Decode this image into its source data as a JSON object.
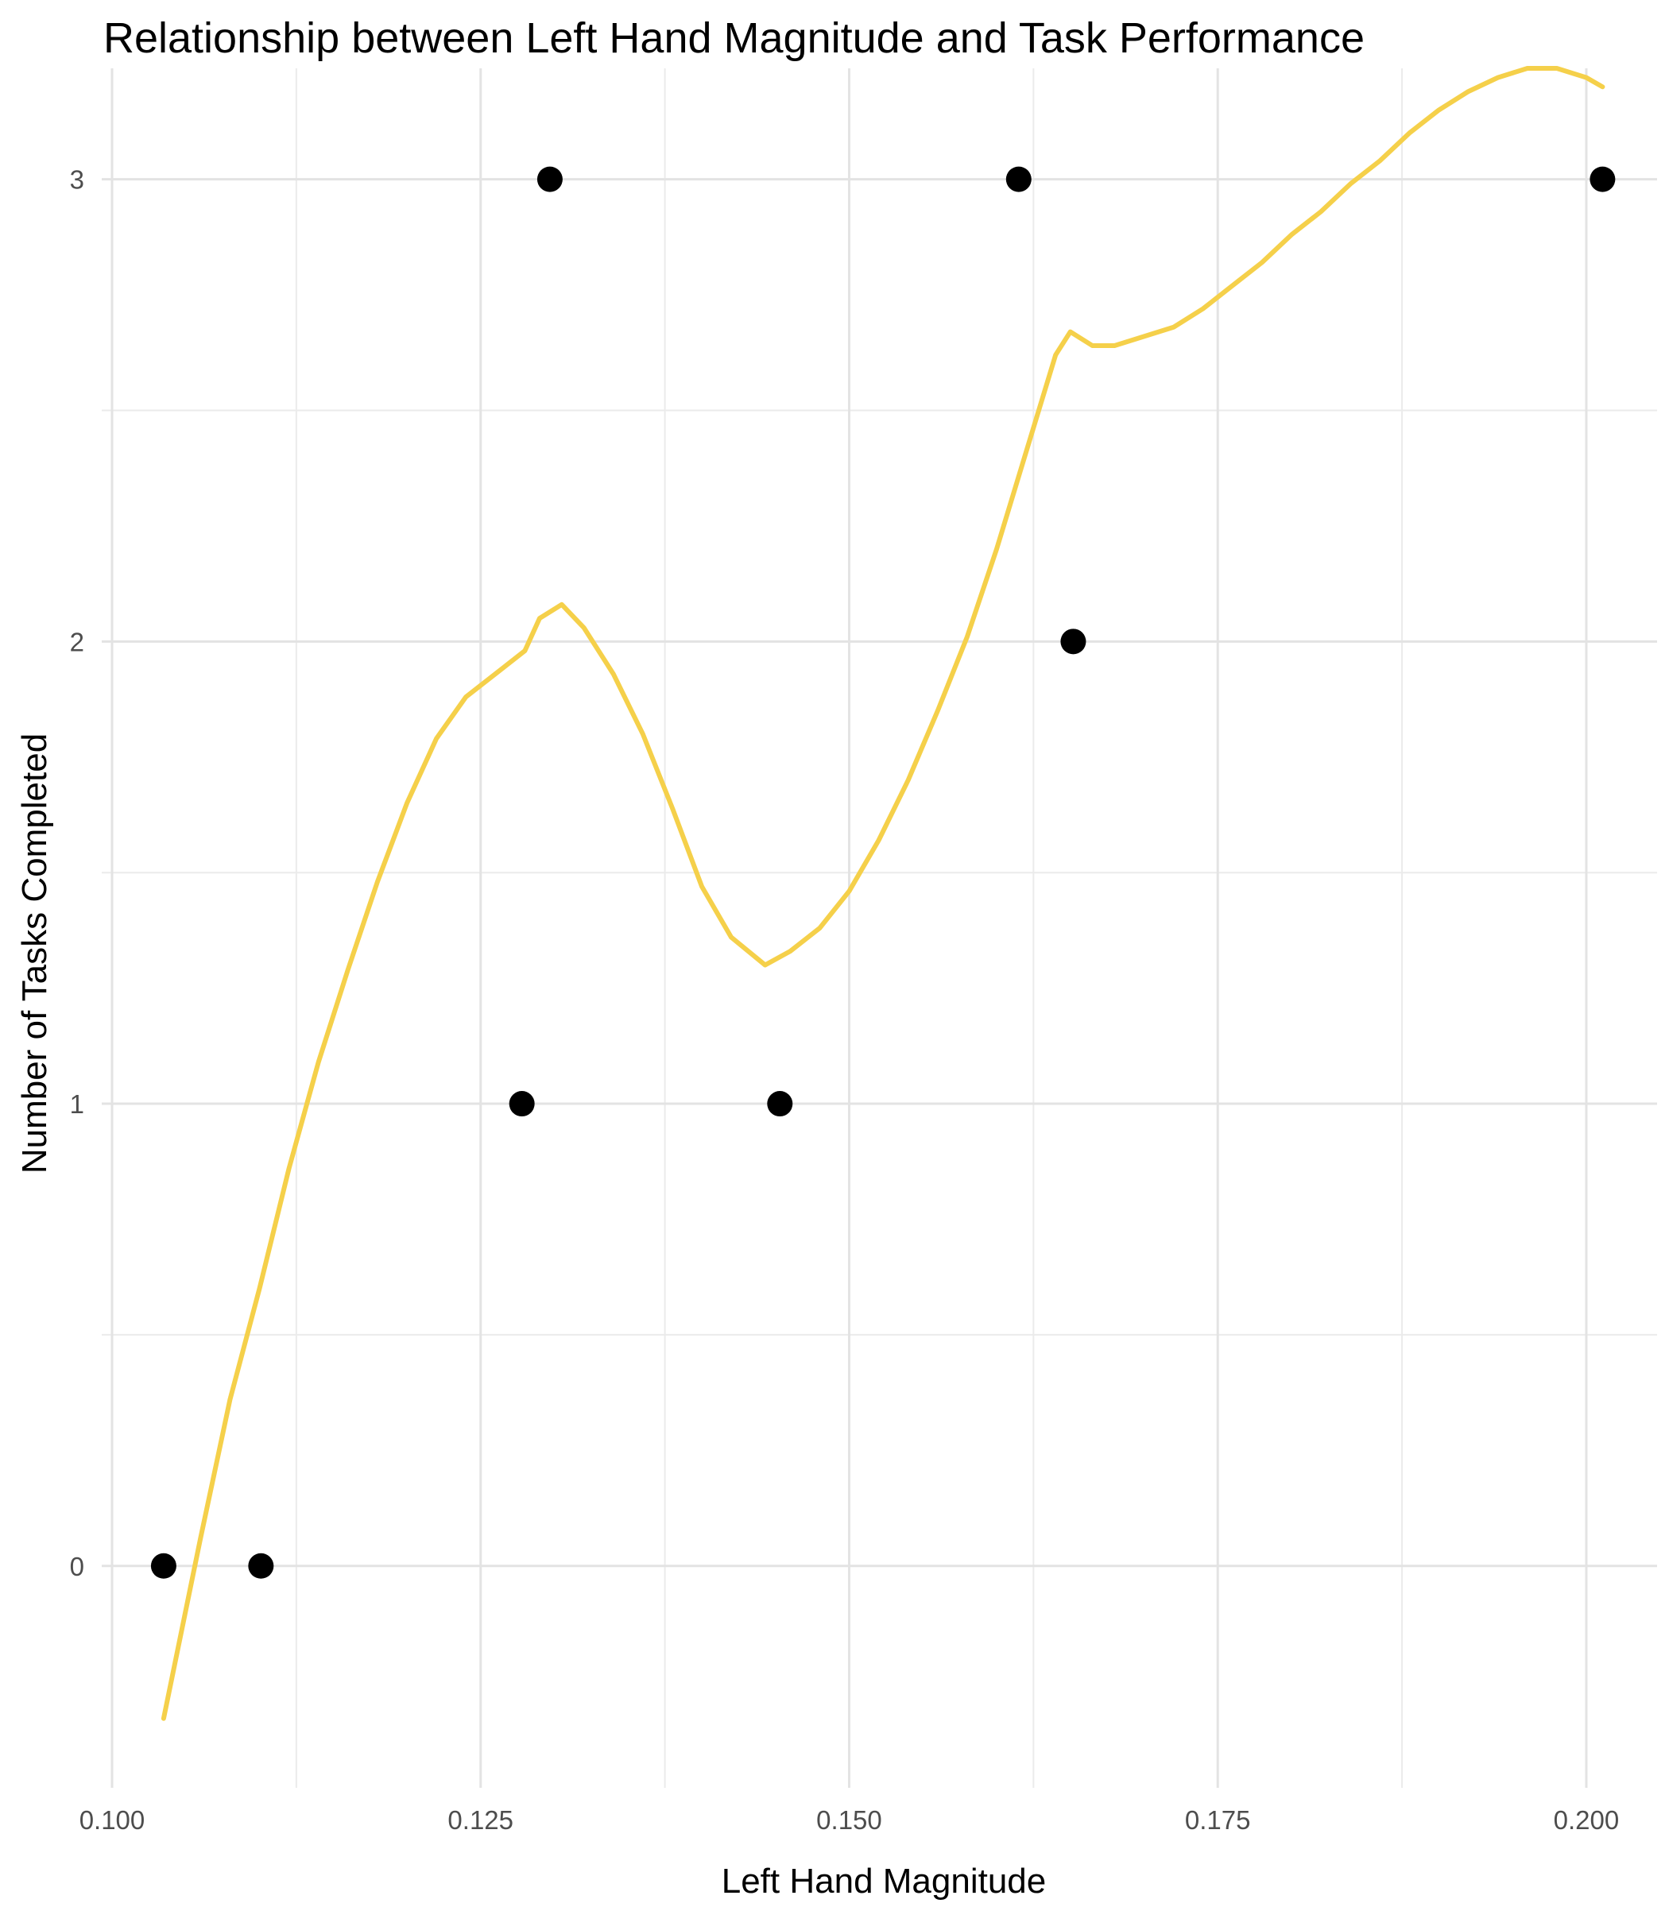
{
  "chart_data": {
    "type": "scatter",
    "title": "Relationship between Left Hand Magnitude and Task Performance",
    "xlabel": "Left Hand Magnitude",
    "ylabel": "Number of Tasks Completed",
    "xlim": [
      0.0993,
      0.2048
    ],
    "ylim": [
      -0.48,
      3.24
    ],
    "x_ticks": [
      0.1,
      0.125,
      0.15,
      0.175,
      0.2
    ],
    "x_tick_labels": [
      "0.100",
      "0.125",
      "0.150",
      "0.175",
      "0.200"
    ],
    "x_minor_ticks": [
      0.1125,
      0.1375,
      0.1625,
      0.1875
    ],
    "y_ticks": [
      0,
      1,
      2,
      3
    ],
    "y_tick_labels": [
      "0",
      "1",
      "2",
      "3"
    ],
    "y_minor_ticks": [
      0.5,
      1.5,
      2.5
    ],
    "grid": true,
    "legend": "none",
    "point_color": "#000000",
    "series": [
      {
        "type": "scatter",
        "color": "#000000",
        "x": [
          0.1035,
          0.1101,
          0.1278,
          0.1297,
          0.1453,
          0.1615,
          0.1652,
          0.2011
        ],
        "y": [
          0,
          0,
          1,
          3,
          1,
          3,
          2,
          3
        ]
      },
      {
        "type": "line",
        "color": "#F5D04A",
        "x": [
          0.1035,
          0.106,
          0.108,
          0.11,
          0.112,
          0.114,
          0.116,
          0.118,
          0.12,
          0.122,
          0.124,
          0.126,
          0.128,
          0.129,
          0.1305,
          0.132,
          0.134,
          0.136,
          0.138,
          0.14,
          0.142,
          0.1443,
          0.146,
          0.148,
          0.15,
          0.152,
          0.154,
          0.156,
          0.158,
          0.16,
          0.162,
          0.164,
          0.165,
          0.1665,
          0.168,
          0.17,
          0.172,
          0.174,
          0.176,
          0.178,
          0.18,
          0.182,
          0.184,
          0.186,
          0.188,
          0.19,
          0.192,
          0.194,
          0.196,
          0.198,
          0.2,
          0.2011
        ],
        "y": [
          -0.33,
          0.06,
          0.36,
          0.6,
          0.86,
          1.09,
          1.29,
          1.48,
          1.65,
          1.79,
          1.88,
          1.93,
          1.98,
          2.05,
          2.08,
          2.03,
          1.93,
          1.8,
          1.64,
          1.47,
          1.36,
          1.3,
          1.33,
          1.38,
          1.46,
          1.57,
          1.7,
          1.85,
          2.01,
          2.2,
          2.41,
          2.62,
          2.67,
          2.64,
          2.64,
          2.66,
          2.68,
          2.72,
          2.77,
          2.82,
          2.88,
          2.93,
          2.99,
          3.04,
          3.1,
          3.15,
          3.19,
          3.22,
          3.24,
          3.24,
          3.22,
          3.2
        ]
      }
    ]
  }
}
